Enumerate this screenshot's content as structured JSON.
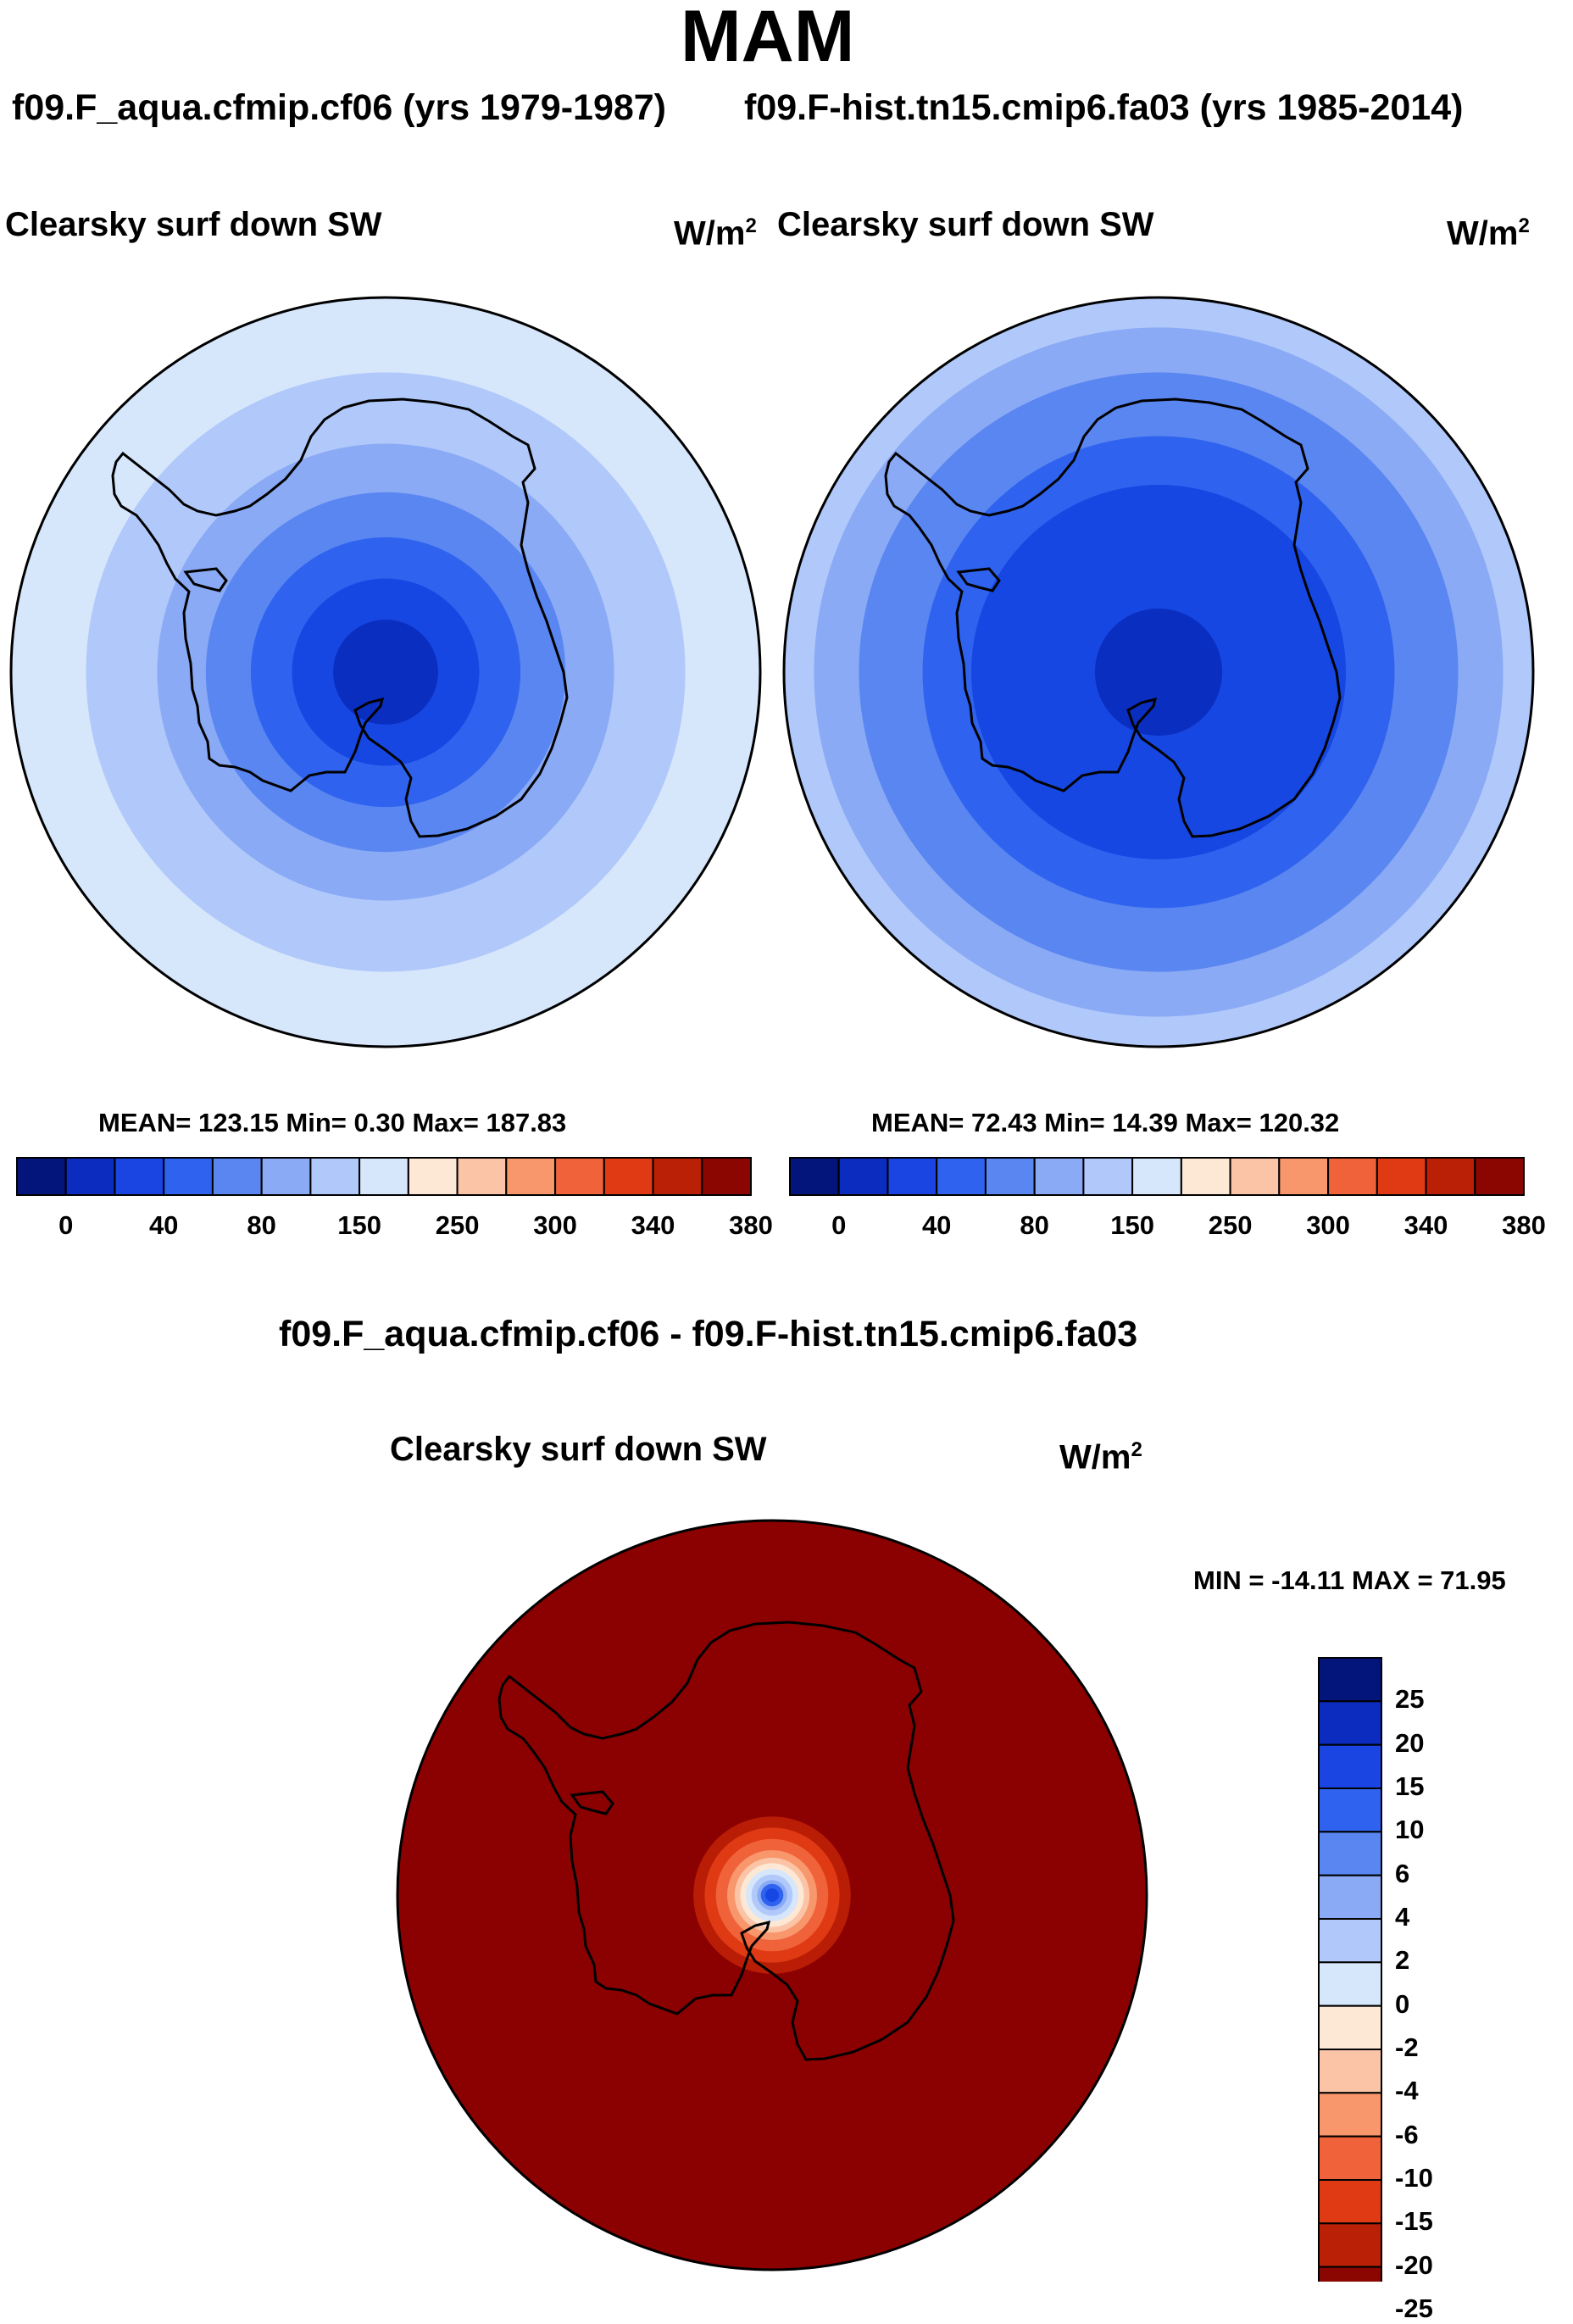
{
  "page": {
    "season": "MAM",
    "case_left": "f09.F_aqua.cfmip.cf06 (yrs 1979-1987)",
    "case_right": "f09.F-hist.tn15.cmip6.fa03 (yrs 1985-2014)",
    "diff_title": "f09.F_aqua.cfmip.cf06 - f09.F-hist.tn15.cmip6.fa03"
  },
  "panels": [
    {
      "variable": "Clearsky surf down SW",
      "units": "W/m",
      "units_exp": "2",
      "stats_label": "MEAN= 123.15  Min=   0.30  Max= 187.83",
      "mean": 123.15,
      "min": 0.3,
      "max": 187.83,
      "rings": [
        {
          "r_frac": 1.0,
          "color": "#d6e6fb"
        },
        {
          "r_frac": 0.8,
          "color": "#b1c9fa"
        },
        {
          "r_frac": 0.61,
          "color": "#8aaaf5"
        },
        {
          "r_frac": 0.48,
          "color": "#5a86f1"
        },
        {
          "r_frac": 0.36,
          "color": "#2f63ef"
        },
        {
          "r_frac": 0.25,
          "color": "#1747e2"
        },
        {
          "r_frac": 0.14,
          "color": "#0a2ec0"
        }
      ]
    },
    {
      "variable": "Clearsky surf down SW",
      "units": "W/m",
      "units_exp": "2",
      "stats_label": "MEAN=  72.43  Min=  14.39  Max= 120.32",
      "mean": 72.43,
      "min": 14.39,
      "max": 120.32,
      "rings": [
        {
          "r_frac": 1.0,
          "color": "#b1c9fa"
        },
        {
          "r_frac": 0.92,
          "color": "#8aaaf5"
        },
        {
          "r_frac": 0.8,
          "color": "#5a86f1"
        },
        {
          "r_frac": 0.63,
          "color": "#2f63ef"
        },
        {
          "r_frac": 0.5,
          "color": "#1747e2"
        },
        {
          "r_frac": 0.17,
          "color": "#0a2ec0"
        }
      ]
    }
  ],
  "abs_colorbar": {
    "colors": [
      "#03157a",
      "#0b2cbf",
      "#1a45e3",
      "#2f63ef",
      "#5a86f1",
      "#8aaaf5",
      "#b1c9fa",
      "#d6e6fb",
      "#fde8d6",
      "#fbc4a6",
      "#f8966c",
      "#f0633a",
      "#e03a14",
      "#b92005",
      "#8b0600"
    ],
    "tick_labels": [
      "0",
      "40",
      "80",
      "150",
      "250",
      "300",
      "340",
      "380"
    ]
  },
  "diff_panel": {
    "variable": "Clearsky surf down SW",
    "units": "W/m",
    "units_exp": "2",
    "minmax_label": "MIN = -14.11 MAX =  71.95",
    "min": -14.11,
    "max": 71.95,
    "background_color": "#8b0000",
    "rings": [
      {
        "r_frac": 0.21,
        "color": "#b91d05"
      },
      {
        "r_frac": 0.18,
        "color": "#e03a14"
      },
      {
        "r_frac": 0.15,
        "color": "#f0633a"
      },
      {
        "r_frac": 0.12,
        "color": "#f8966c"
      },
      {
        "r_frac": 0.1,
        "color": "#fbc4a6"
      },
      {
        "r_frac": 0.085,
        "color": "#fde8d6"
      },
      {
        "r_frac": 0.07,
        "color": "#d6e6fb"
      },
      {
        "r_frac": 0.055,
        "color": "#b1c9fa"
      },
      {
        "r_frac": 0.04,
        "color": "#8aaaf5"
      },
      {
        "r_frac": 0.03,
        "color": "#2f63ef"
      },
      {
        "r_frac": 0.018,
        "color": "#1747e2"
      }
    ]
  },
  "diff_colorbar": {
    "colors": [
      "#03157a",
      "#0b2cbf",
      "#1a45e3",
      "#2f63ef",
      "#5a86f1",
      "#8aaaf5",
      "#b1c9fa",
      "#d6e6fb",
      "#fde8d6",
      "#fbc4a6",
      "#f8966c",
      "#f0633a",
      "#e03a14",
      "#b92005",
      "#8b0600"
    ],
    "tick_labels": [
      "25",
      "20",
      "15",
      "10",
      "6",
      "4",
      "2",
      "0",
      "-2",
      "-4",
      "-6",
      "-10",
      "-15",
      "-20",
      "-25"
    ]
  }
}
